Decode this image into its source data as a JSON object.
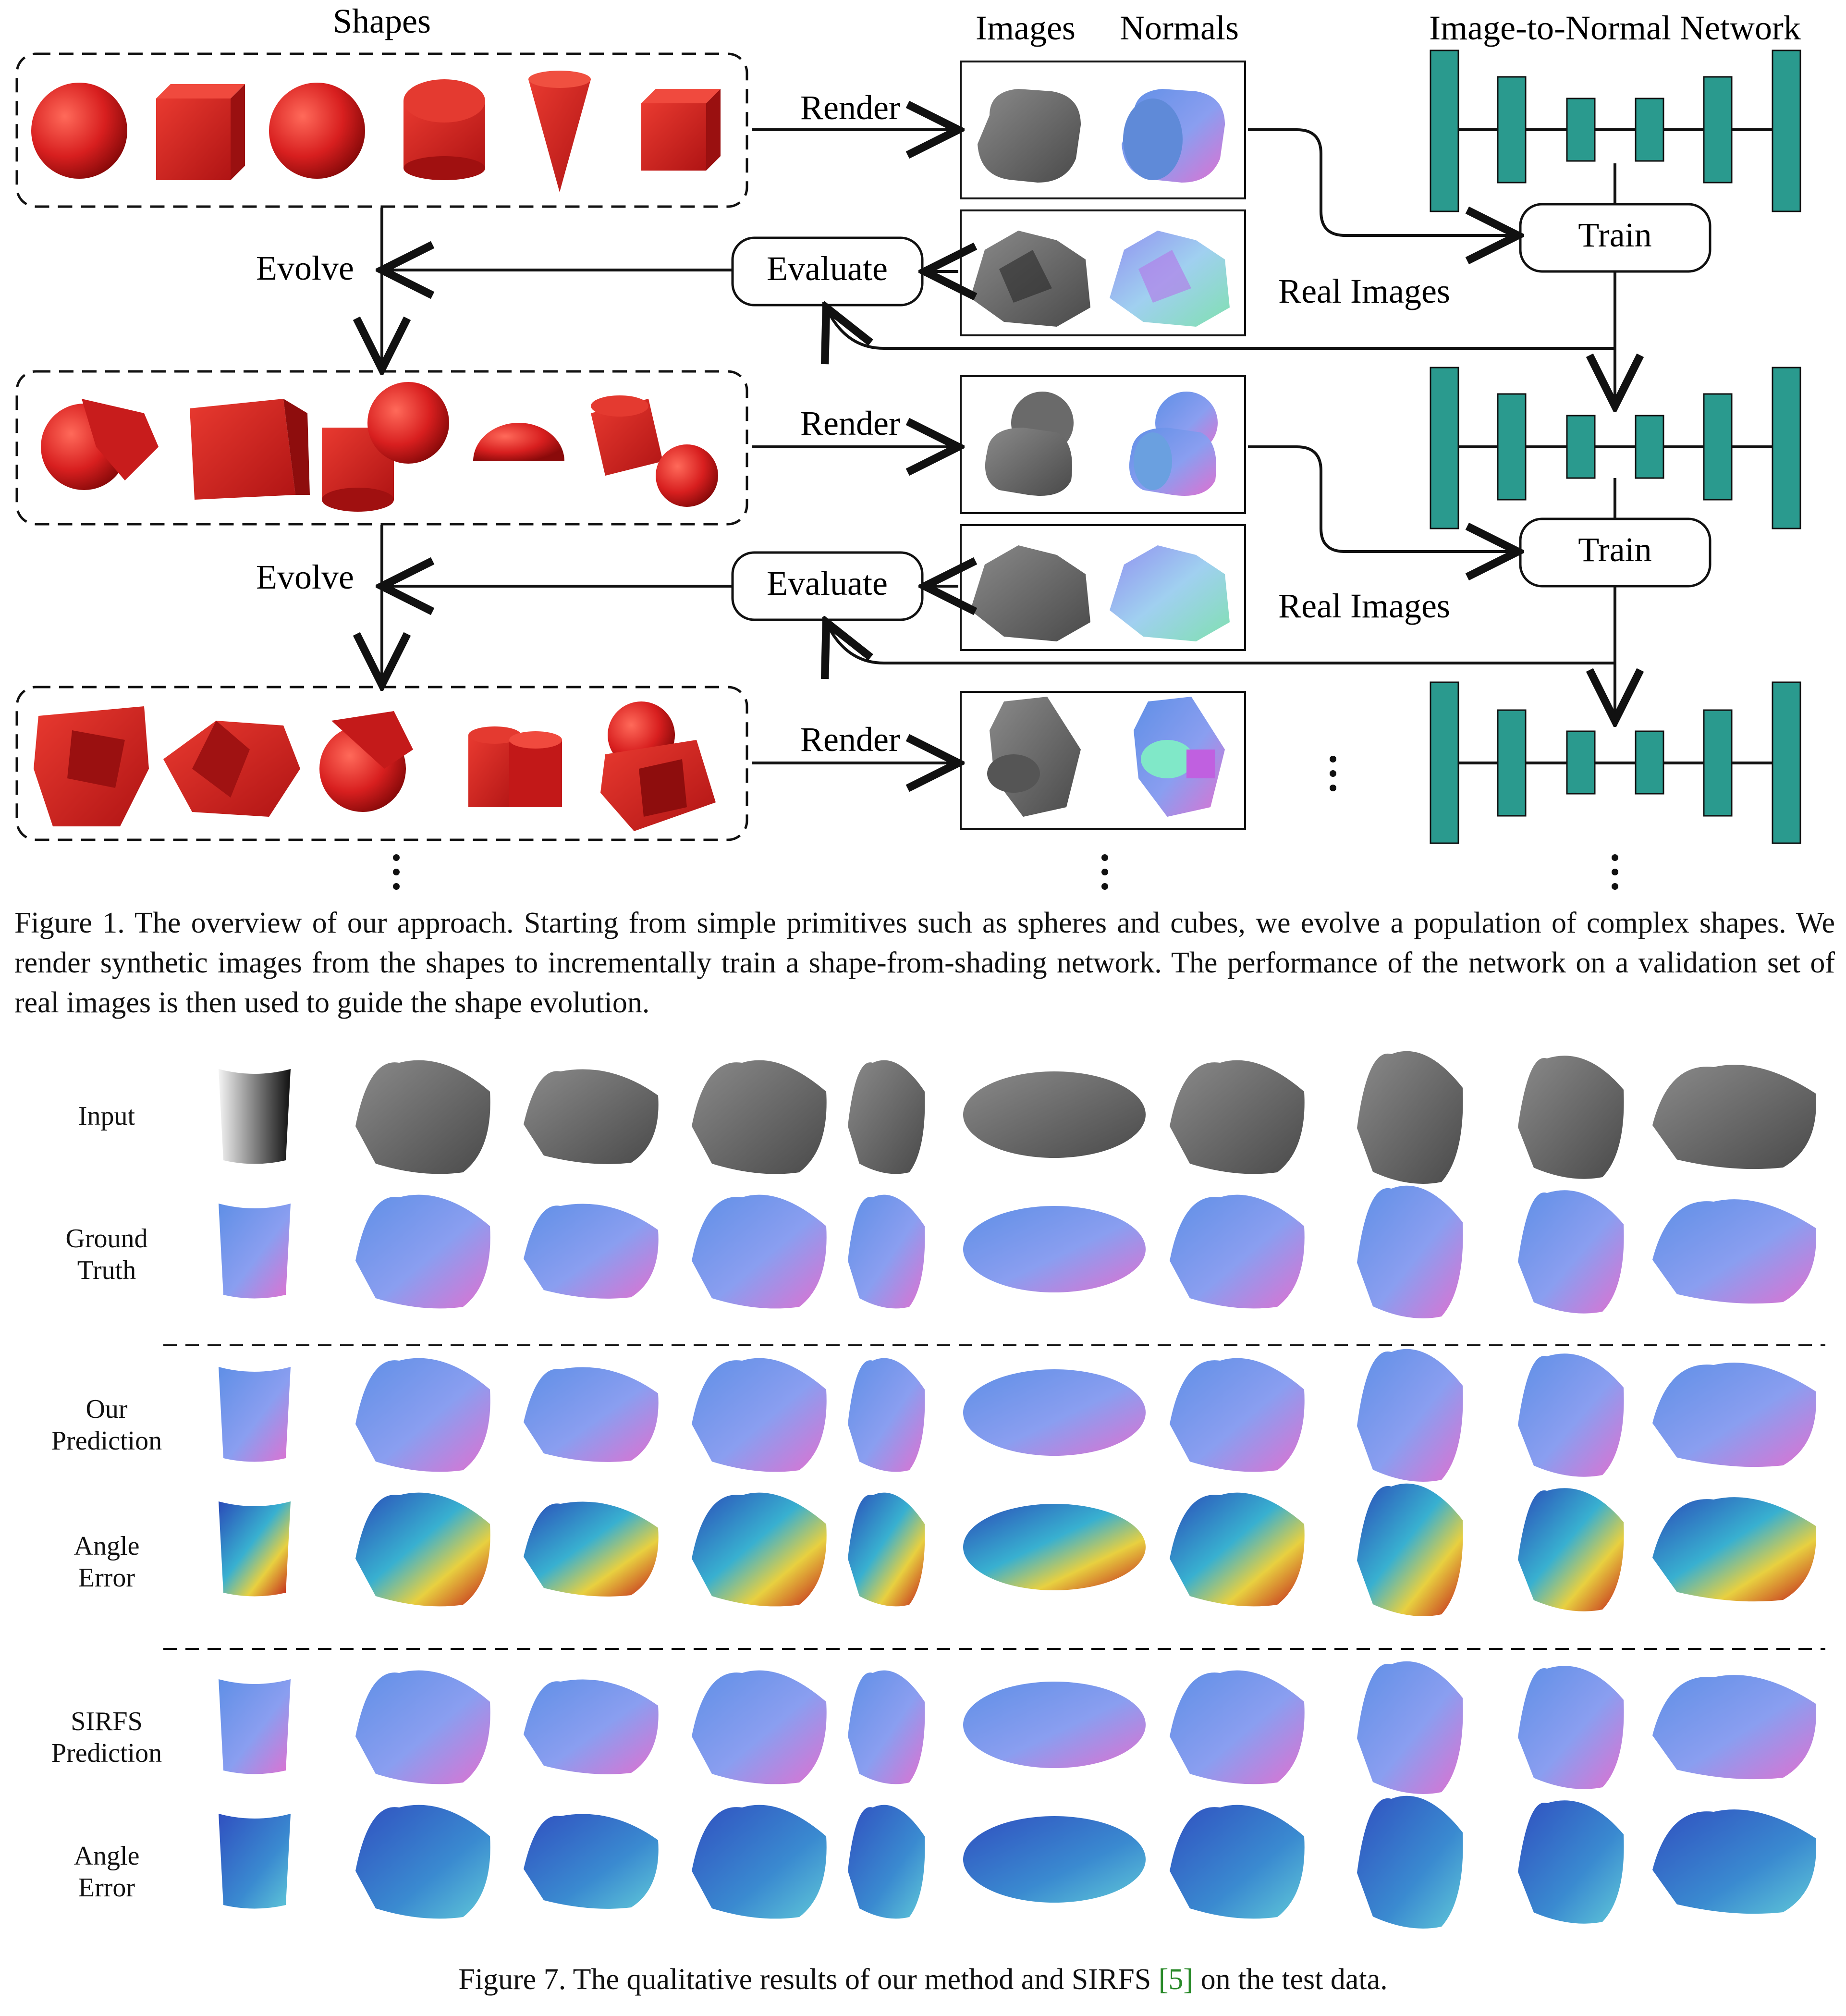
{
  "figure1": {
    "headers": {
      "shapes": "Shapes",
      "images": "Images",
      "normals": "Normals",
      "network": "Image-to-Normal Network"
    },
    "labels": {
      "render": "Render",
      "evolve": "Evolve",
      "evaluate": "Evaluate",
      "train": "Train",
      "real_images": "Real Images"
    },
    "caption": "Figure 1. The overview of our approach. Starting from simple primitives such as spheres and cubes, we evolve a population of complex shapes. We render synthetic images from the shapes to incrementally train a shape-from-shading network. The performance of the network on a validation set of real images is then used to guide the shape evolution.",
    "colors": {
      "shape_red": "#d81f1f",
      "network_teal": "#2a9a8e",
      "normal_blue": "#7aa6e6",
      "normal_pink": "#d878d8"
    }
  },
  "figure7": {
    "row_labels": [
      "Input",
      "Ground\nTruth",
      "Our\nPrediction",
      "Angle\nError",
      "SIRFS\nPrediction",
      "Angle\nError"
    ],
    "caption_prefix": "Figure 7. The qualitative results of our method and SIRFS ",
    "caption_ref": "[5]",
    "caption_suffix": " on the test data."
  }
}
